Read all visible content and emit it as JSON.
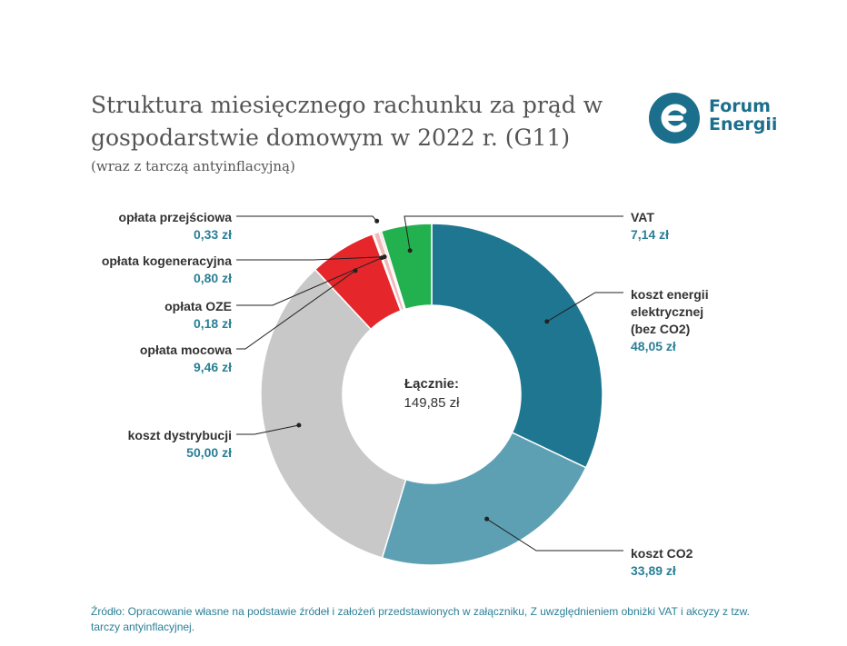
{
  "header": {
    "title": "Struktura miesięcznego rachunku za prąd w gospodarstwie domowym w 2022 r. (G11)",
    "subtitle": "(wraz z tarczą antyinflacyjną)"
  },
  "logo": {
    "line1": "Forum",
    "line2": "Energii",
    "color": "#1c6f8c"
  },
  "chart_data": {
    "type": "pie",
    "title": "Struktura miesięcznego rachunku za prąd w gospodarstwie domowym w 2022 r. (G11)",
    "subtitle": "(wraz z tarczą antyinflacyjną)",
    "unit": "zł",
    "total": {
      "label": "Łącznie:",
      "value": 149.85,
      "display": "149,85 zł"
    },
    "slices": [
      {
        "name": "koszt energii elektrycznej (bez CO2)",
        "value": 48.05,
        "display": "48,05 zł",
        "color": "#1f7691"
      },
      {
        "name": "koszt CO2",
        "value": 33.89,
        "display": "33,89 zł",
        "color": "#5ea0b3"
      },
      {
        "name": "koszt dystrybucji",
        "value": 50.0,
        "display": "50,00 zł",
        "color": "#c8c8c8"
      },
      {
        "name": "opłata mocowa",
        "value": 9.46,
        "display": "9,46 zł",
        "color": "#e5262b"
      },
      {
        "name": "opłata OZE",
        "value": 0.18,
        "display": "0,18 zł",
        "color": "#ee9a9a"
      },
      {
        "name": "opłata kogeneracyjna",
        "value": 0.8,
        "display": "0,80 zł",
        "color": "#f2b8b8"
      },
      {
        "name": "opłata przejściowa",
        "value": 0.33,
        "display": "0,33 zł",
        "color": "#f6cdcd"
      },
      {
        "name": "VAT",
        "value": 7.14,
        "display": "7,14 zł",
        "color": "#23b04f"
      }
    ]
  },
  "labels": {
    "vat": {
      "name": "VAT",
      "value": "7,14 zł"
    },
    "energia": {
      "name": "koszt energii elektrycznej (bez CO2)",
      "value": "48,05 zł"
    },
    "co2": {
      "name": "koszt CO2",
      "value": "33,89 zł"
    },
    "dystrybucja": {
      "name": "koszt dystrybucji",
      "value": "50,00 zł"
    },
    "mocowa": {
      "name": "opłata mocowa",
      "value": "9,46 zł"
    },
    "oze": {
      "name": "opłata OZE",
      "value": "0,18 zł"
    },
    "kogeneracyjna": {
      "name": "opłata kogeneracyjna",
      "value": "0,80 zł"
    },
    "przejsciowa": {
      "name": "opłata przejściowa",
      "value": "0,33 zł"
    }
  },
  "center": {
    "label": "Łącznie:",
    "value": "149,85 zł"
  },
  "footer": {
    "source": "Źródło: Opracowanie własne na podstawie źródeł i założeń przedstawionych w załączniku, Z uwzględnieniem obniżki VAT i akcyzy z tzw. tarczy antyinflacyjnej."
  }
}
